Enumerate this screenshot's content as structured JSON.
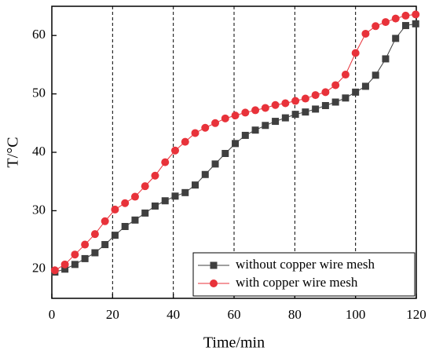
{
  "chart_data": {
    "type": "line",
    "xlabel": "Time/min",
    "ylabel": "T/°C",
    "x": [
      1.0,
      4.3,
      7.6,
      10.9,
      14.2,
      17.5,
      20.8,
      24.1,
      27.4,
      30.7,
      34.0,
      37.3,
      40.6,
      43.9,
      47.2,
      50.5,
      53.8,
      57.1,
      60.4,
      63.7,
      67.0,
      70.3,
      73.6,
      76.9,
      80.2,
      83.5,
      86.8,
      90.1,
      93.4,
      96.7,
      100.0,
      103.3,
      106.6,
      109.9,
      113.2,
      116.5,
      119.8
    ],
    "series": [
      {
        "name": "without copper wire mesh",
        "color": "#3f3f3f",
        "marker": "square",
        "values": [
          19.5,
          20.0,
          20.8,
          21.8,
          22.8,
          24.2,
          25.8,
          27.3,
          28.4,
          29.6,
          30.8,
          31.7,
          32.5,
          33.1,
          34.4,
          36.2,
          38.0,
          39.8,
          41.5,
          42.9,
          43.8,
          44.6,
          45.3,
          45.9,
          46.5,
          46.9,
          47.4,
          48.0,
          48.6,
          49.3,
          50.3,
          51.3,
          53.2,
          56.0,
          59.5,
          61.7,
          62.0
        ]
      },
      {
        "name": "with copper wire mesh",
        "color": "#e8323a",
        "marker": "circle",
        "values": [
          19.8,
          20.8,
          22.5,
          24.2,
          26.0,
          28.2,
          30.2,
          31.3,
          32.4,
          34.2,
          36.0,
          38.3,
          40.3,
          41.8,
          43.3,
          44.2,
          45.0,
          45.8,
          46.3,
          46.8,
          47.2,
          47.6,
          48.1,
          48.4,
          48.8,
          49.2,
          49.8,
          50.3,
          51.5,
          53.3,
          57.0,
          60.3,
          61.6,
          62.3,
          62.9,
          63.4,
          63.6
        ]
      }
    ],
    "xlim": [
      0,
      120
    ],
    "xticks": [
      0,
      20,
      40,
      60,
      80,
      100,
      120
    ],
    "ylim": [
      15,
      65
    ],
    "yticks": [
      20,
      30,
      40,
      50,
      60
    ],
    "grid": "x",
    "legend": "lower right"
  }
}
